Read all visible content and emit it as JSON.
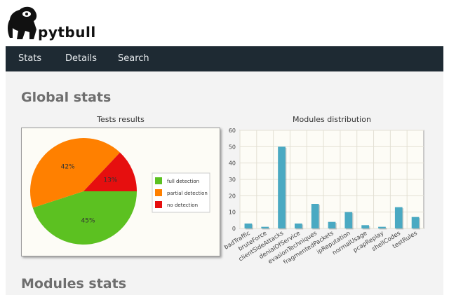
{
  "header": {
    "logo_text": "pytbull"
  },
  "nav": {
    "items": [
      "Stats",
      "Details",
      "Search"
    ]
  },
  "page": {
    "global_title": "Global stats",
    "modules_title": "Modules stats"
  },
  "colors": {
    "full": "#5cc121",
    "partial": "#ff8000",
    "none": "#e60f0f",
    "bar": "#4aa9c2",
    "navbar": "#1e2a33"
  },
  "chart_data": [
    {
      "type": "pie",
      "title": "Tests results",
      "labels": [
        "full detection",
        "partial detection",
        "no detection"
      ],
      "values": [
        45,
        42,
        13
      ],
      "value_labels": [
        "45%",
        "42%",
        "13%"
      ],
      "legend": "right"
    },
    {
      "type": "bar",
      "title": "Modules distribution",
      "categories": [
        "badTraffic",
        "bruteForce",
        "clientSideAttacks",
        "denialOfService",
        "evasionTechniques",
        "fragmentedPackets",
        "ipReputation",
        "normalUsage",
        "pcapReplay",
        "shellCodes",
        "testRules"
      ],
      "values": [
        3,
        1,
        50,
        3,
        15,
        4,
        10,
        2,
        1,
        13,
        7
      ],
      "ylim": [
        0,
        60
      ],
      "yticks": [
        "0",
        "10",
        "20",
        "30",
        "40",
        "50",
        "60"
      ],
      "grid": true
    }
  ]
}
